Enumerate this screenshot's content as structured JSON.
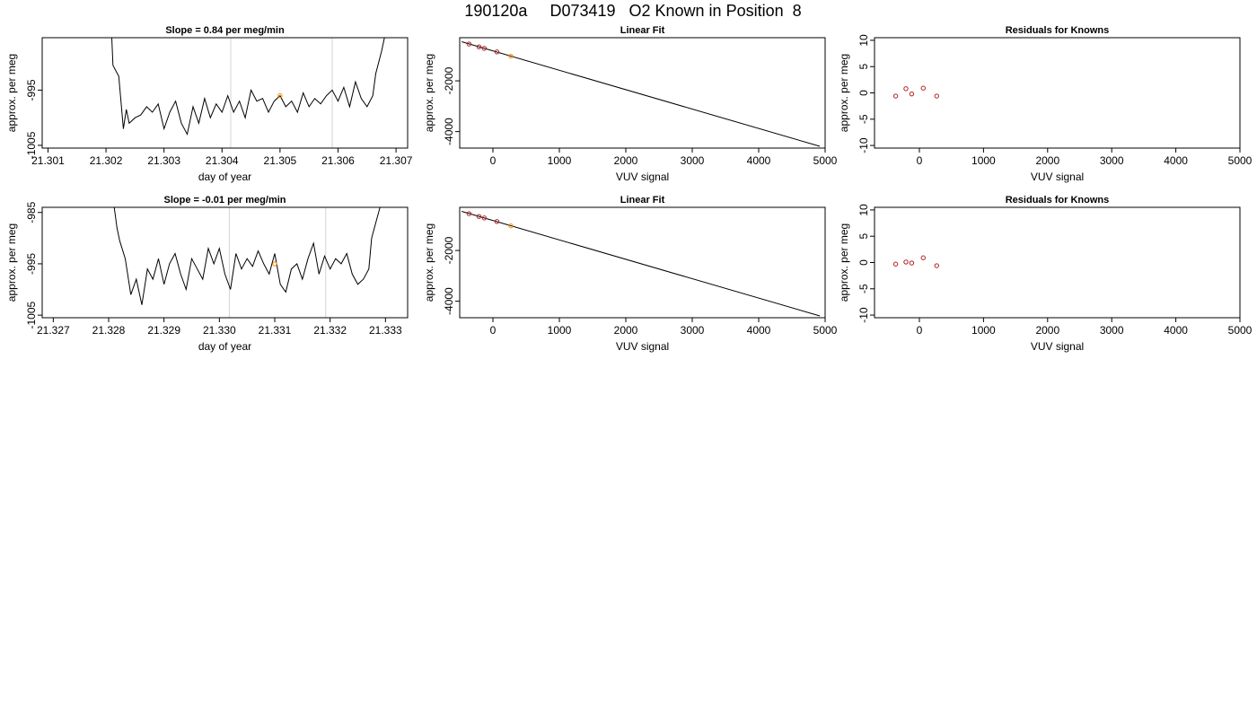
{
  "figure": {
    "title": "190120a     D073419   O2 Known in Position  8"
  },
  "colors": {
    "trace": "#000000",
    "vline": "#d3d3d3",
    "known": "#ff8c00",
    "residual": "#b22222",
    "frame": "#000000"
  },
  "chart_data": [
    {
      "id": "ts1",
      "type": "line",
      "title": "Slope =  0.84  per meg/min",
      "xlabel": "day of year",
      "ylabel": "approx. per meg",
      "xlim": [
        21.3009,
        21.3072
      ],
      "ylim": [
        -1005.5,
        -985.5
      ],
      "xticks": [
        21.301,
        21.302,
        21.303,
        21.304,
        21.305,
        21.306,
        21.307
      ],
      "xtick_labels": [
        "21.301",
        "21.302",
        "21.303",
        "21.304",
        "21.305",
        "21.306",
        "21.307"
      ],
      "yticks": [
        -1005,
        -995
      ],
      "ytick_labels": [
        "-1005",
        "-995"
      ],
      "vlines": [
        21.30415,
        21.3059
      ],
      "known_point": {
        "x": 21.305,
        "y": -996
      },
      "series": [
        {
          "x": [
            21.3021,
            21.30212,
            21.30222,
            21.3023,
            21.30235,
            21.3024,
            21.3025,
            21.3026,
            21.3027,
            21.3028,
            21.3029,
            21.303,
            21.3031,
            21.3032,
            21.3033,
            21.3034,
            21.3035,
            21.3036,
            21.3037,
            21.3038,
            21.3039,
            21.304,
            21.3041,
            21.3042,
            21.3043,
            21.3044,
            21.3045,
            21.3046,
            21.3047,
            21.3048,
            21.3049,
            21.305,
            21.3051,
            21.3052,
            21.3053,
            21.3054,
            21.3055,
            21.3056,
            21.3057,
            21.3058,
            21.3059,
            21.306,
            21.3061,
            21.3062,
            21.3063,
            21.3064,
            21.3065,
            21.3066,
            21.30665,
            21.30675,
            21.3068
          ],
          "y": [
            -985.5,
            -990.5,
            -992.5,
            -1002,
            -998.5,
            -1001,
            -1000,
            -999.5,
            -998,
            -999,
            -997.5,
            -1002,
            -999,
            -997,
            -1001,
            -1003,
            -998,
            -1001,
            -996.5,
            -1000,
            -997.5,
            -999,
            -996,
            -999,
            -997,
            -1000,
            -995,
            -997,
            -996.5,
            -999,
            -997,
            -996,
            -998,
            -997,
            -999,
            -995.5,
            -998,
            -996.5,
            -997.5,
            -996,
            -995,
            -997,
            -994.5,
            -998,
            -993.5,
            -996.5,
            -998,
            -996,
            -992,
            -988,
            -985.5
          ]
        }
      ]
    },
    {
      "id": "fit1",
      "type": "scatter",
      "title": "Linear Fit",
      "xlabel": "VUV signal",
      "ylabel": "approx. per meg",
      "xlim": [
        -500,
        5000
      ],
      "ylim": [
        -4650,
        -300
      ],
      "xticks": [
        0,
        1000,
        2000,
        3000,
        4000,
        5000
      ],
      "xtick_labels": [
        "0",
        "1000",
        "2000",
        "3000",
        "4000",
        "5000"
      ],
      "yticks": [
        -4000,
        -2000
      ],
      "ytick_labels": [
        "-4000",
        "-2000"
      ],
      "fit_line": {
        "x": [
          -470,
          4920
        ],
        "y": [
          -460,
          -4580
        ]
      },
      "points": {
        "x": [
          -360,
          -210,
          -130,
          60
        ],
        "y": [
          -550,
          -660,
          -720,
          -860
        ]
      },
      "known_point": {
        "x": 270,
        "y": -1030
      }
    },
    {
      "id": "res1",
      "type": "scatter",
      "title": "Residuals for Knowns",
      "xlabel": "VUV signal",
      "ylabel": "approx. per meg",
      "xlim": [
        -700,
        5000
      ],
      "ylim": [
        -10.5,
        10.5
      ],
      "xticks": [
        0,
        1000,
        2000,
        3000,
        4000,
        5000
      ],
      "xtick_labels": [
        "0",
        "1000",
        "2000",
        "3000",
        "4000",
        "5000"
      ],
      "yticks": [
        -10,
        -5,
        0,
        5,
        10
      ],
      "ytick_labels": [
        "-10",
        "-5",
        "0",
        "5",
        "10"
      ],
      "points": {
        "x": [
          -370,
          -210,
          -120,
          60,
          270
        ],
        "y": [
          -0.6,
          0.8,
          -0.2,
          0.9,
          -0.6
        ]
      }
    },
    {
      "id": "ts2",
      "type": "line",
      "title": "Slope =  -0.01  per meg/min",
      "xlabel": "day of year",
      "ylabel": "approx. per meg",
      "xlim": [
        21.3268,
        21.3334
      ],
      "ylim": [
        -1005.5,
        -984
      ],
      "xticks": [
        21.327,
        21.328,
        21.329,
        21.33,
        21.331,
        21.332,
        21.333
      ],
      "xtick_labels": [
        "21.327",
        "21.328",
        "21.329",
        "21.330",
        "21.331",
        "21.332",
        "21.333"
      ],
      "yticks": [
        -1005,
        -995,
        -985
      ],
      "ytick_labels": [
        "-1005",
        "-995",
        "-985"
      ],
      "vlines": [
        21.33018,
        21.33192
      ],
      "known_point": {
        "x": 21.331,
        "y": -995
      },
      "series": [
        {
          "x": [
            21.3281,
            21.32815,
            21.3282,
            21.3283,
            21.3284,
            21.3285,
            21.3286,
            21.3287,
            21.3288,
            21.3289,
            21.329,
            21.3291,
            21.3292,
            21.3293,
            21.3294,
            21.3295,
            21.3296,
            21.3297,
            21.3298,
            21.3299,
            21.33,
            21.3301,
            21.3302,
            21.3303,
            21.3304,
            21.3305,
            21.3306,
            21.3307,
            21.3308,
            21.3309,
            21.331,
            21.3311,
            21.3312,
            21.3313,
            21.3314,
            21.3315,
            21.3316,
            21.3317,
            21.3318,
            21.3319,
            21.332,
            21.3321,
            21.3322,
            21.3323,
            21.3324,
            21.3325,
            21.3326,
            21.3327,
            21.33275,
            21.3328,
            21.3329
          ],
          "y": [
            -984,
            -988,
            -990.5,
            -994,
            -1001,
            -998,
            -1003,
            -996,
            -998,
            -994,
            -999,
            -995,
            -993,
            -997,
            -1000,
            -994,
            -996,
            -998,
            -992,
            -995,
            -992,
            -997,
            -1000,
            -993,
            -996,
            -994,
            -995.5,
            -992.5,
            -995,
            -997,
            -993,
            -999,
            -1000.5,
            -996,
            -995,
            -998,
            -994,
            -991,
            -997,
            -993.5,
            -996,
            -994,
            -995,
            -993,
            -997,
            -999,
            -998,
            -996,
            -990,
            -988,
            -984
          ]
        }
      ]
    },
    {
      "id": "fit2",
      "type": "scatter",
      "title": "Linear Fit",
      "xlabel": "VUV signal",
      "ylabel": "approx. per meg",
      "xlim": [
        -500,
        5000
      ],
      "ylim": [
        -4650,
        -300
      ],
      "xticks": [
        0,
        1000,
        2000,
        3000,
        4000,
        5000
      ],
      "xtick_labels": [
        "0",
        "1000",
        "2000",
        "3000",
        "4000",
        "5000"
      ],
      "yticks": [
        -4000,
        -2000
      ],
      "ytick_labels": [
        "-4000",
        "-2000"
      ],
      "fit_line": {
        "x": [
          -470,
          4920
        ],
        "y": [
          -460,
          -4580
        ]
      },
      "points": {
        "x": [
          -360,
          -210,
          -130,
          60
        ],
        "y": [
          -550,
          -660,
          -720,
          -860
        ]
      },
      "known_point": {
        "x": 270,
        "y": -1030
      }
    },
    {
      "id": "res2",
      "type": "scatter",
      "title": "Residuals for Knowns",
      "xlabel": "VUV signal",
      "ylabel": "approx. per meg",
      "xlim": [
        -700,
        5000
      ],
      "ylim": [
        -10.5,
        10.5
      ],
      "xticks": [
        0,
        1000,
        2000,
        3000,
        4000,
        5000
      ],
      "xtick_labels": [
        "0",
        "1000",
        "2000",
        "3000",
        "4000",
        "5000"
      ],
      "yticks": [
        -10,
        -5,
        0,
        5,
        10
      ],
      "ytick_labels": [
        "-10",
        "-5",
        "0",
        "5",
        "10"
      ],
      "points": {
        "x": [
          -370,
          -210,
          -120,
          60,
          270
        ],
        "y": [
          -0.3,
          0.1,
          -0.1,
          0.9,
          -0.6
        ]
      }
    }
  ]
}
